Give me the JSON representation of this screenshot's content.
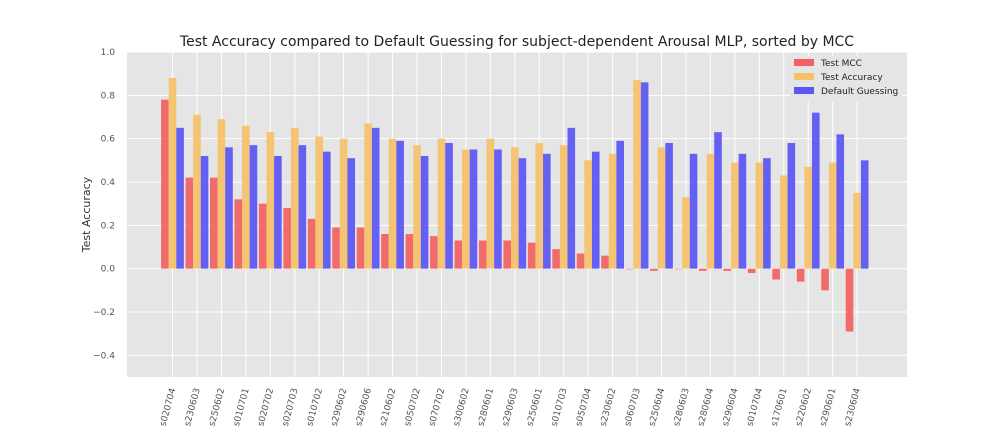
{
  "chart_data": {
    "type": "bar",
    "title": "Test Accuracy compared to Default Guessing  for subject-dependent Arousal MLP, sorted by MCC",
    "ylabel": "Test Accuracy",
    "xlabel": "",
    "ylim": [
      -0.5,
      1.0
    ],
    "yticks": [
      -0.4,
      -0.2,
      0.0,
      0.2,
      0.4,
      0.6,
      0.8,
      1.0
    ],
    "ytick_labels": [
      "−0.4",
      "−0.2",
      "0.0",
      "0.2",
      "0.4",
      "0.6",
      "0.8",
      "1.0"
    ],
    "grid": true,
    "legend_position": "top-right",
    "categories": [
      "s020704",
      "s230603",
      "s250602",
      "s010701",
      "s020702",
      "s020703",
      "s010702",
      "s290602",
      "s290606",
      "s210602",
      "s050702",
      "s070702",
      "s300602",
      "s280601",
      "s290603",
      "s250601",
      "s010703",
      "s050704",
      "s230602",
      "s060703",
      "s250604",
      "s280603",
      "s280604",
      "s290604",
      "s010704",
      "s170601",
      "s220602",
      "s290601",
      "s230604"
    ],
    "series": [
      {
        "name": "Test MCC",
        "color": "#f26262",
        "values": [
          0.78,
          0.42,
          0.42,
          0.32,
          0.3,
          0.28,
          0.23,
          0.19,
          0.19,
          0.16,
          0.16,
          0.15,
          0.13,
          0.13,
          0.13,
          0.12,
          0.09,
          0.07,
          0.06,
          0.0,
          -0.01,
          0.0,
          -0.01,
          -0.01,
          -0.02,
          -0.05,
          -0.06,
          -0.1,
          -0.29
        ]
      },
      {
        "name": "Test Accuracy",
        "color": "#f5c26b",
        "values": [
          0.88,
          0.71,
          0.69,
          0.66,
          0.63,
          0.65,
          0.61,
          0.6,
          0.67,
          0.6,
          0.57,
          0.6,
          0.55,
          0.6,
          0.56,
          0.58,
          0.57,
          0.5,
          0.53,
          0.87,
          0.56,
          0.33,
          0.53,
          0.49,
          0.49,
          0.43,
          0.47,
          0.49,
          0.35
        ]
      },
      {
        "name": "Default Guessing",
        "color": "#5b56f5",
        "values": [
          0.65,
          0.52,
          0.56,
          0.57,
          0.52,
          0.57,
          0.54,
          0.51,
          0.65,
          0.59,
          0.52,
          0.58,
          0.55,
          0.55,
          0.51,
          0.53,
          0.65,
          0.54,
          0.59,
          0.86,
          0.58,
          0.53,
          0.63,
          0.53,
          0.51,
          0.58,
          0.72,
          0.62,
          0.5
        ]
      }
    ]
  }
}
